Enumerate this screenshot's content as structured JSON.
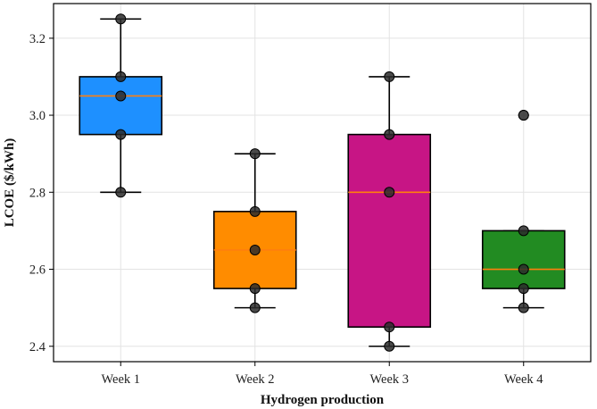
{
  "chart_data": {
    "type": "box",
    "xlabel": "Hydrogen production",
    "ylabel": "LCOE ($/kWh)",
    "ylim": [
      2.36,
      3.29
    ],
    "yticks": [
      2.4,
      2.6,
      2.8,
      3.0,
      3.2
    ],
    "ytick_labels": [
      "2.4",
      "2.6",
      "2.8",
      "3.0",
      "3.2"
    ],
    "grid": true,
    "median_color": "#ff7f0e",
    "categories": [
      "Week 1",
      "Week 2",
      "Week 3",
      "Week 4"
    ],
    "boxes": [
      {
        "category": "Week 1",
        "color": "#1e90ff",
        "whislo": 2.8,
        "q1": 2.95,
        "med": 3.05,
        "q3": 3.1,
        "whishi": 3.25,
        "fliers": [],
        "points": [
          3.25,
          3.1,
          3.05,
          2.95,
          2.8
        ]
      },
      {
        "category": "Week 2",
        "color": "#ff8c00",
        "whislo": 2.5,
        "q1": 2.55,
        "med": 2.65,
        "q3": 2.75,
        "whishi": 2.9,
        "fliers": [],
        "points": [
          2.9,
          2.75,
          2.65,
          2.55,
          2.5
        ]
      },
      {
        "category": "Week 3",
        "color": "#c71585",
        "whislo": 2.4,
        "q1": 2.45,
        "med": 2.8,
        "q3": 2.95,
        "whishi": 3.1,
        "fliers": [],
        "points": [
          3.1,
          2.95,
          2.8,
          2.45,
          2.4
        ]
      },
      {
        "category": "Week 4",
        "color": "#228b22",
        "whislo": 2.5,
        "q1": 2.55,
        "med": 2.6,
        "q3": 2.7,
        "whishi": 2.7,
        "fliers": [
          3.0
        ],
        "points": [
          3.0,
          2.7,
          2.6,
          2.55,
          2.5
        ]
      }
    ]
  }
}
